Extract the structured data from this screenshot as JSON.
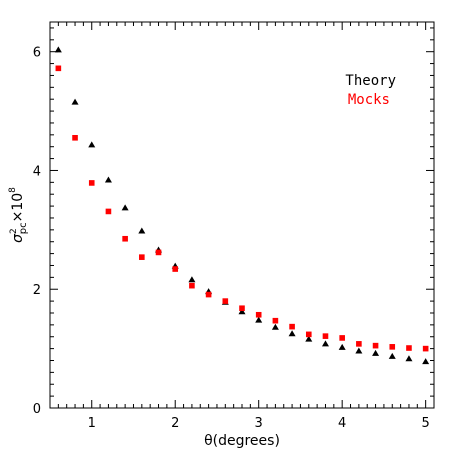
{
  "chart_data": {
    "type": "scatter",
    "title": "",
    "xlabel": "θ(degrees)",
    "ylabel": "σ²pc×10⁸",
    "ylabel_parts": {
      "sigma": "σ",
      "sup": "2",
      "sub": "pc",
      "times": "×10",
      "exp": "8"
    },
    "xlim": [
      0.5,
      5.1
    ],
    "ylim": [
      0,
      6.5
    ],
    "xticks": [
      1,
      2,
      3,
      4,
      5
    ],
    "yticks": [
      0,
      2,
      4,
      6
    ],
    "grid": false,
    "legend_position": "top-right",
    "series": [
      {
        "name": "Theory",
        "marker": "triangle",
        "color": "#000000",
        "x": [
          0.6,
          0.8,
          1.0,
          1.2,
          1.4,
          1.6,
          1.8,
          2.0,
          2.2,
          2.4,
          2.6,
          2.8,
          3.0,
          3.2,
          3.4,
          3.6,
          3.8,
          4.0,
          4.2,
          4.4,
          4.6,
          4.8,
          5.0
        ],
        "y": [
          6.03,
          5.15,
          4.43,
          3.84,
          3.37,
          2.98,
          2.66,
          2.39,
          2.16,
          1.96,
          1.78,
          1.62,
          1.48,
          1.36,
          1.25,
          1.16,
          1.08,
          1.02,
          0.96,
          0.92,
          0.87,
          0.83,
          0.78
        ]
      },
      {
        "name": "Mocks",
        "marker": "square",
        "color": "#ff0000",
        "x": [
          0.6,
          0.8,
          1.0,
          1.2,
          1.4,
          1.6,
          1.8,
          2.0,
          2.2,
          2.4,
          2.6,
          2.8,
          3.0,
          3.2,
          3.4,
          3.6,
          3.8,
          4.0,
          4.2,
          4.4,
          4.6,
          4.8,
          5.0
        ],
        "y": [
          5.72,
          4.55,
          3.79,
          3.31,
          2.85,
          2.54,
          2.62,
          2.34,
          2.06,
          1.91,
          1.8,
          1.68,
          1.57,
          1.47,
          1.37,
          1.24,
          1.21,
          1.18,
          1.08,
          1.05,
          1.03,
          1.01,
          1.0
        ]
      }
    ]
  }
}
